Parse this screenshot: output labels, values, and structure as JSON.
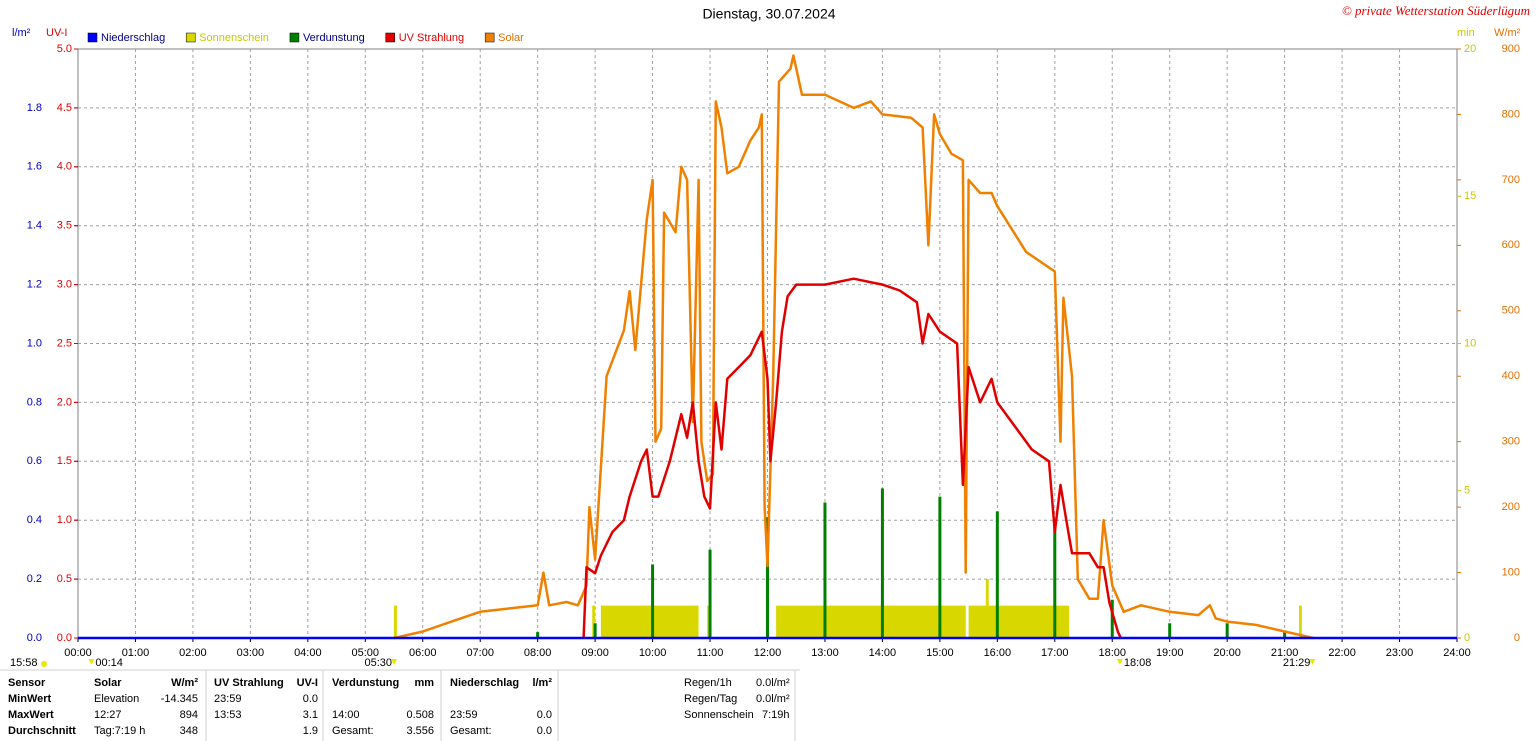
{
  "chart_data": {
    "type": "line",
    "title": "Dienstag, 30.07.2024",
    "copyright": "© private Wetterstation Süderlügum",
    "y_label": "l/m²",
    "y2_label": "UV-I",
    "y3_label": "min",
    "y4_label": "W/m²",
    "grid": true,
    "xlim": [
      0,
      24
    ],
    "xticks": [
      {
        "value": 0,
        "label": "00:00"
      },
      {
        "value": 1,
        "label": "01:00"
      },
      {
        "value": 2,
        "label": "02:00"
      },
      {
        "value": 3,
        "label": "03:00"
      },
      {
        "value": 4,
        "label": "04:00"
      },
      {
        "value": 5,
        "label": "05:00"
      },
      {
        "value": 6,
        "label": "06:00"
      },
      {
        "value": 7,
        "label": "07:00"
      },
      {
        "value": 8,
        "label": "08:00"
      },
      {
        "value": 9,
        "label": "09:00"
      },
      {
        "value": 10,
        "label": "10:00"
      },
      {
        "value": 11,
        "label": "11:00"
      },
      {
        "value": 12,
        "label": "12:00"
      },
      {
        "value": 13,
        "label": "13:00"
      },
      {
        "value": 14,
        "label": "14:00"
      },
      {
        "value": 15,
        "label": "15:00"
      },
      {
        "value": 16,
        "label": "16:00"
      },
      {
        "value": 17,
        "label": "17:00"
      },
      {
        "value": 18,
        "label": "18:00"
      },
      {
        "value": 19,
        "label": "19:00"
      },
      {
        "value": 20,
        "label": "20:00"
      },
      {
        "value": 21,
        "label": "21:00"
      },
      {
        "value": 22,
        "label": "22:00"
      },
      {
        "value": 23,
        "label": "23:00"
      },
      {
        "value": 24,
        "label": "24:00"
      }
    ],
    "ylim": [
      0,
      2
    ],
    "yticks": [
      {
        "value": 0,
        "label": "0.0"
      },
      {
        "value": 0.2,
        "label": "0.2"
      },
      {
        "value": 0.4,
        "label": "0.4"
      },
      {
        "value": 0.6,
        "label": "0.6"
      },
      {
        "value": 0.8,
        "label": "0.8"
      },
      {
        "value": 1,
        "label": "1.0"
      },
      {
        "value": 1.2,
        "label": "1.2"
      },
      {
        "value": 1.4,
        "label": "1.4"
      },
      {
        "value": 1.6,
        "label": "1.6"
      },
      {
        "value": 1.8,
        "label": "1.8"
      }
    ],
    "y2lim": [
      0,
      5
    ],
    "y2ticks": [
      {
        "value": 0,
        "label": "0.0"
      },
      {
        "value": 0.5,
        "label": "0.5"
      },
      {
        "value": 1,
        "label": "1.0"
      },
      {
        "value": 1.5,
        "label": "1.5"
      },
      {
        "value": 2,
        "label": "2.0"
      },
      {
        "value": 2.5,
        "label": "2.5"
      },
      {
        "value": 3,
        "label": "3.0"
      },
      {
        "value": 3.5,
        "label": "3.5"
      },
      {
        "value": 4,
        "label": "4.0"
      },
      {
        "value": 4.5,
        "label": "4.5"
      },
      {
        "value": 5,
        "label": "5.0"
      }
    ],
    "y3lim": [
      0,
      20
    ],
    "y3ticks": [
      0,
      5,
      10,
      15,
      20
    ],
    "y4lim": [
      0,
      900
    ],
    "y4ticks": [
      0,
      100,
      200,
      300,
      400,
      500,
      600,
      700,
      800,
      900
    ],
    "series": [
      {
        "name": "Niederschlag",
        "type": "line",
        "axis": "y",
        "color": "#0000ff",
        "text_color": "#000080",
        "x": [
          0,
          24
        ],
        "values": [
          0,
          0
        ]
      },
      {
        "name": "Sonnenschein",
        "type": "span",
        "axis": "y3",
        "color": "#d8d800",
        "text_color": "#c8c800",
        "x": [
          5.5,
          8.95,
          9.1,
          10.95,
          12.15,
          15.5,
          15.8,
          21.25
        ],
        "x_end": [
          5.55,
          9.0,
          10.8,
          11.0,
          15.45,
          17.25,
          15.85,
          21.3
        ],
        "values": [
          1.1,
          1.1,
          1.1,
          1.1,
          1.1,
          1.1,
          2,
          1.1
        ]
      },
      {
        "name": "Verdunstung",
        "type": "bar",
        "axis": "y",
        "color": "#008000",
        "text_color": "#000080",
        "x": [
          8,
          9,
          10,
          11,
          12,
          13,
          14,
          15,
          16,
          17,
          18,
          19,
          20,
          21
        ],
        "values": [
          0.02,
          0.05,
          0.25,
          0.3,
          0.41,
          0.46,
          0.508,
          0.48,
          0.43,
          0.38,
          0.13,
          0.05,
          0.05,
          0.02
        ]
      },
      {
        "name": "UV Strahlung",
        "type": "line",
        "axis": "y2",
        "color": "#e00000",
        "text_color": "#e00000",
        "x": [
          8.8,
          8.85,
          9.0,
          9.1,
          9.3,
          9.5,
          9.6,
          9.8,
          9.9,
          10.0,
          10.1,
          10.3,
          10.5,
          10.6,
          10.7,
          10.8,
          10.9,
          11.0,
          11.1,
          11.2,
          11.3,
          11.5,
          11.7,
          11.9,
          12.0,
          12.05,
          12.15,
          12.25,
          12.35,
          12.5,
          13.0,
          13.5,
          14.0,
          14.3,
          14.6,
          14.7,
          14.8,
          15.0,
          15.3,
          15.4,
          15.5,
          15.7,
          15.9,
          16.0,
          16.3,
          16.6,
          16.9,
          17.0,
          17.1,
          17.2,
          17.3,
          17.6,
          17.75,
          17.85,
          17.95,
          18.1,
          18.15
        ],
        "values": [
          0,
          0.6,
          0.55,
          0.7,
          0.9,
          1.0,
          1.2,
          1.5,
          1.6,
          1.2,
          1.2,
          1.5,
          1.9,
          1.7,
          2.0,
          1.5,
          1.2,
          1.1,
          2.0,
          1.6,
          2.2,
          2.3,
          2.4,
          2.6,
          2.2,
          1.5,
          2.0,
          2.6,
          2.9,
          3.0,
          3.0,
          3.05,
          3.0,
          2.95,
          2.85,
          2.5,
          2.75,
          2.6,
          2.5,
          1.3,
          2.3,
          2.0,
          2.2,
          2.0,
          1.8,
          1.6,
          1.5,
          0.9,
          1.3,
          1.0,
          0.72,
          0.72,
          0.6,
          0.6,
          0.3,
          0.05,
          0
        ]
      },
      {
        "name": "Solar",
        "type": "line",
        "axis": "y4",
        "color": "#f08000",
        "text_color": "#e07000",
        "x": [
          5.5,
          6.0,
          6.5,
          7.0,
          7.5,
          8.0,
          8.1,
          8.2,
          8.5,
          8.7,
          8.85,
          8.9,
          9.0,
          9.2,
          9.5,
          9.6,
          9.7,
          9.9,
          10.0,
          10.05,
          10.15,
          10.2,
          10.4,
          10.5,
          10.6,
          10.7,
          10.8,
          10.85,
          10.95,
          11.05,
          11.1,
          11.2,
          11.3,
          11.5,
          11.7,
          11.85,
          11.9,
          11.95,
          12.0,
          12.1,
          12.2,
          12.4,
          12.45,
          12.6,
          13.0,
          13.5,
          13.8,
          14.0,
          14.5,
          14.7,
          14.8,
          14.9,
          15.0,
          15.2,
          15.4,
          15.45,
          15.5,
          15.7,
          15.9,
          16.0,
          16.5,
          17.0,
          17.1,
          17.15,
          17.2,
          17.3,
          17.4,
          17.6,
          17.75,
          17.85,
          18.0,
          18.2,
          18.5,
          19.0,
          19.5,
          19.7,
          19.8,
          20.0,
          20.5,
          21.0,
          21.5
        ],
        "values": [
          0,
          10,
          25,
          40,
          45,
          50,
          100,
          50,
          55,
          50,
          80,
          200,
          120,
          400,
          470,
          530,
          440,
          640,
          700,
          300,
          320,
          650,
          620,
          720,
          700,
          330,
          700,
          300,
          240,
          250,
          820,
          780,
          710,
          720,
          760,
          780,
          800,
          200,
          110,
          400,
          850,
          870,
          890,
          830,
          830,
          810,
          820,
          800,
          795,
          780,
          600,
          800,
          770,
          740,
          730,
          100,
          700,
          680,
          680,
          660,
          590,
          560,
          300,
          520,
          480,
          400,
          90,
          60,
          60,
          180,
          80,
          40,
          50,
          40,
          35,
          50,
          30,
          25,
          20,
          10,
          0
        ]
      }
    ],
    "current_time": "15:58",
    "annotations": [
      {
        "text": "00:14",
        "x": 0.233
      },
      {
        "text": "05:30",
        "x": 5.5
      },
      {
        "text": "18:08",
        "x": 18.133
      },
      {
        "text": "21:29",
        "x": 21.483
      }
    ]
  },
  "stats": {
    "header": [
      "Sensor",
      "Solar",
      "W/m²",
      "UV Strahlung",
      "UV-I",
      "Verdunstung",
      "mm",
      "Niederschlag",
      "l/m²"
    ],
    "rows": [
      [
        "MinWert",
        "Elevation",
        "-14.345",
        "23:59",
        "0.0",
        null,
        null,
        null,
        null
      ],
      [
        "MaxWert",
        "12:27",
        "894",
        "13:53",
        "3.1",
        "14:00",
        "0.508",
        "23:59",
        "0.0"
      ],
      [
        "Durchschnitt",
        "Tag:7:19 h",
        "348",
        null,
        "1.9",
        "Gesamt:",
        "3.556",
        "Gesamt:",
        "0.0"
      ]
    ],
    "summary": [
      [
        "Regen/1h",
        "0.0l/m²"
      ],
      [
        "Regen/Tag",
        "0.0l/m²"
      ],
      [
        "Sonnenschein",
        "7:19h"
      ]
    ]
  }
}
